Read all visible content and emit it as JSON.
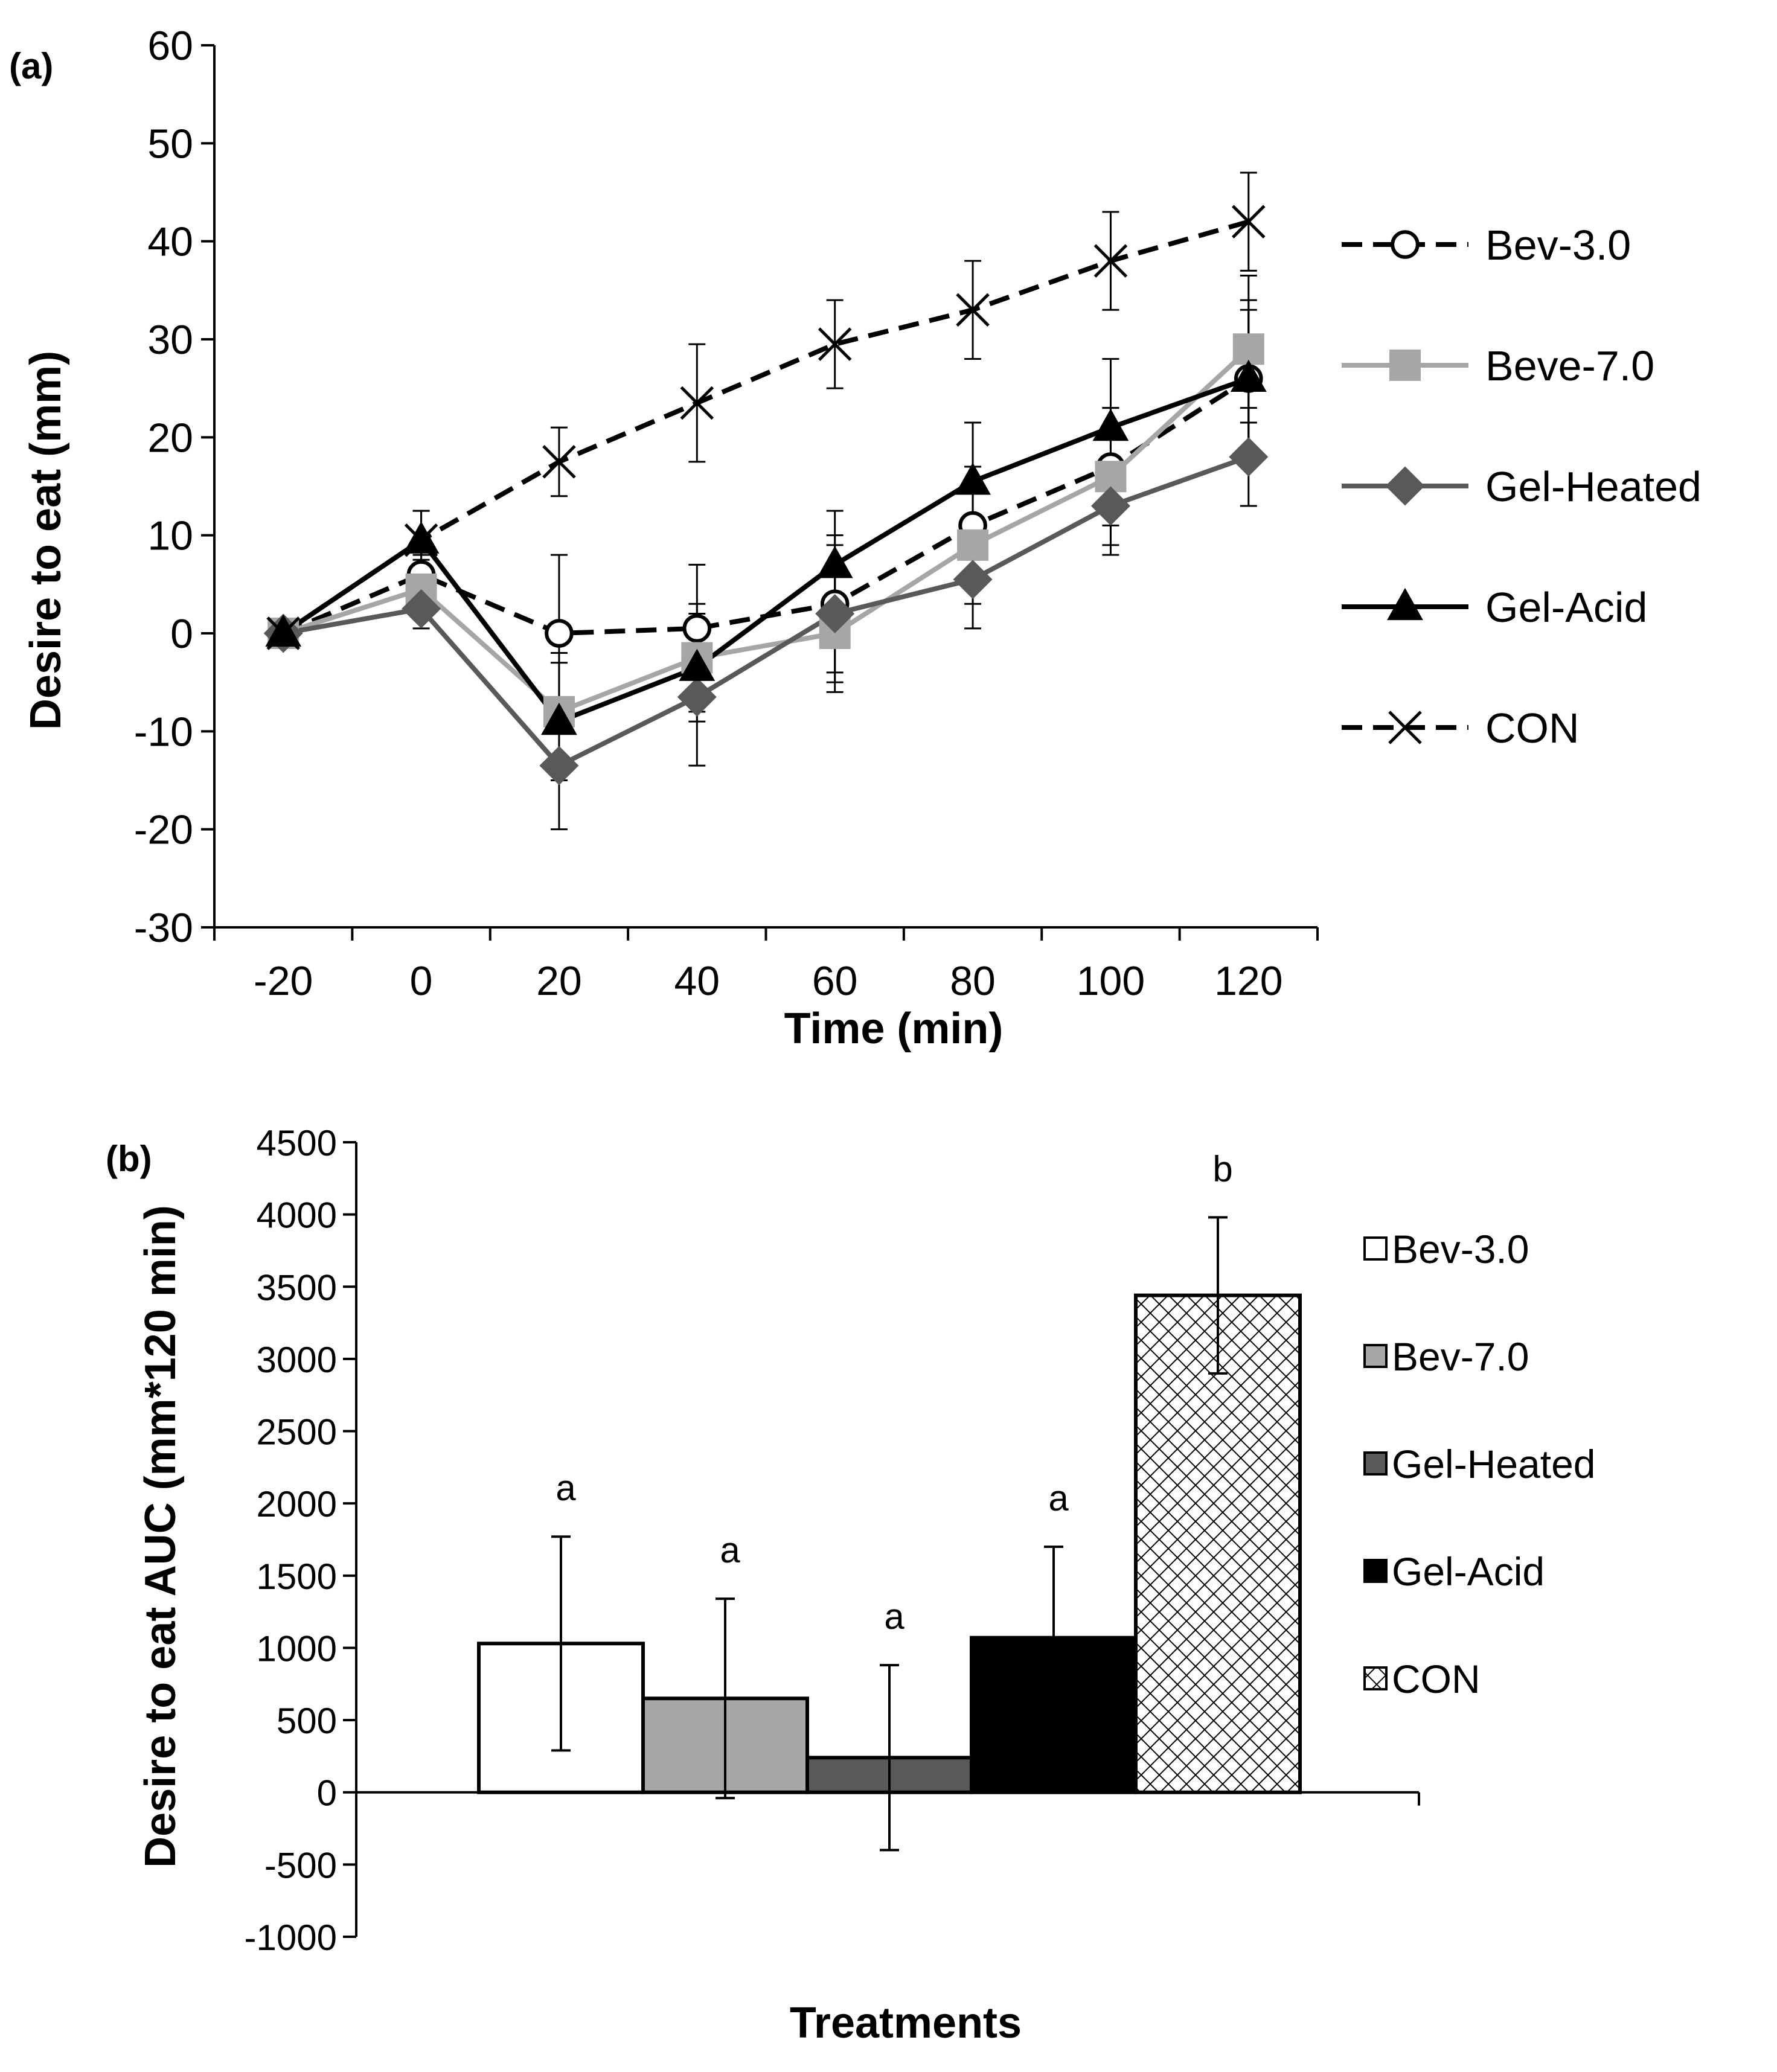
{
  "chart_data": [
    {
      "type": "line",
      "panel_label": "(a)",
      "xlabel": "Time (min)",
      "ylabel": "Desire to eat (mm)",
      "x": [
        -20,
        0,
        20,
        40,
        60,
        80,
        100,
        120
      ],
      "ylim": [
        -30,
        60
      ],
      "yticks": [
        -30,
        -20,
        -10,
        0,
        10,
        20,
        30,
        40,
        50,
        60
      ],
      "grid": false,
      "legend_position": "right",
      "series": [
        {
          "name": "Bev-3.0",
          "values": [
            0,
            6,
            0,
            0.5,
            3,
            11,
            17,
            26
          ],
          "errors": [
            0,
            2,
            8,
            6.5,
            7,
            6,
            6,
            8
          ],
          "color": "#000000",
          "line_style": "dashed",
          "marker": "circle"
        },
        {
          "name": "Beve-7.0",
          "values": [
            0,
            4.5,
            -8,
            -2.5,
            0,
            9,
            16,
            29
          ],
          "errors": [
            0,
            3,
            6,
            5.5,
            6,
            6,
            7,
            7.5
          ],
          "color": "#a6a6a6",
          "line_style": "solid",
          "marker": "square"
        },
        {
          "name": "Gel-Heated",
          "values": [
            0,
            2.5,
            -13.5,
            -6.5,
            2,
            5.5,
            13,
            18
          ],
          "errors": [
            0,
            2,
            6.5,
            7,
            7,
            5,
            5,
            5
          ],
          "color": "#595959",
          "line_style": "solid",
          "marker": "diamond"
        },
        {
          "name": "Gel-Acid",
          "values": [
            0,
            9.5,
            -9,
            -3.5,
            7,
            15.5,
            21,
            26
          ],
          "errors": [
            0,
            3,
            6,
            5.5,
            5.5,
            6,
            7,
            7
          ],
          "color": "#000000",
          "line_style": "solid",
          "marker": "triangle"
        },
        {
          "name": "CON",
          "values": [
            0,
            9.5,
            17.5,
            23.5,
            29.5,
            33,
            38,
            42
          ],
          "errors": [
            0,
            3,
            3.5,
            6,
            4.5,
            5,
            5,
            5
          ],
          "color": "#000000",
          "line_style": "dashed",
          "marker": "x"
        }
      ]
    },
    {
      "type": "bar",
      "panel_label": "(b)",
      "xlabel": "Treatments",
      "ylabel": "Desire to eat AUC  (mm*120 min)",
      "ylim": [
        -1000,
        4500
      ],
      "yticks": [
        -1000,
        -500,
        0,
        500,
        1000,
        1500,
        2000,
        2500,
        3000,
        3500,
        4000,
        4500
      ],
      "grid": false,
      "legend_position": "right",
      "categories": [
        "Bev-3.0",
        "Bev-7.0",
        "Gel-Heated",
        "Gel-Acid",
        "CON"
      ],
      "values": [
        1030,
        650,
        240,
        1070,
        3440
      ],
      "errors": [
        740,
        690,
        640,
        630,
        540
      ],
      "significance_labels": [
        "a",
        "a",
        "a",
        "a",
        "b"
      ],
      "colors": [
        "#ffffff",
        "#a6a6a6",
        "#595959",
        "#000000",
        "crosshatch"
      ]
    }
  ]
}
